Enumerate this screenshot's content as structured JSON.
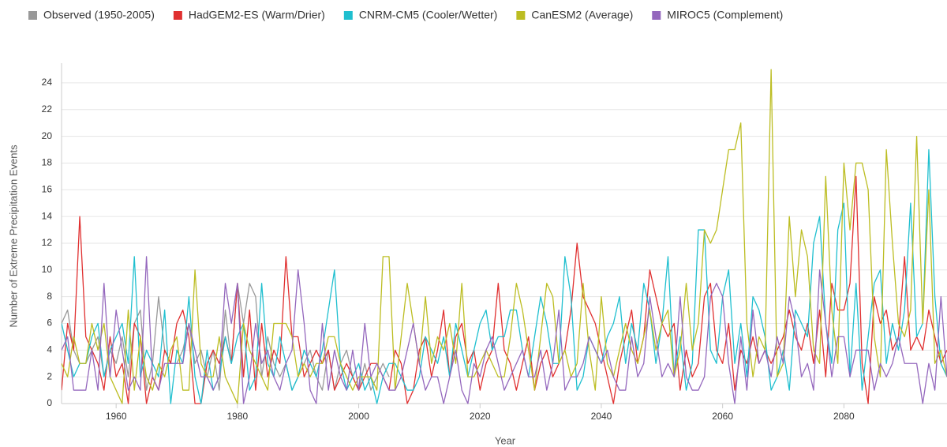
{
  "chart_data": {
    "type": "line",
    "x_label": "Year",
    "y_label": "Number of Extreme Precipitation Events",
    "legend": "top",
    "grid": true,
    "xlim": [
      1951,
      2097
    ],
    "xticks": [
      1960,
      1980,
      2000,
      2020,
      2040,
      2060,
      2080
    ],
    "ylim": [
      0,
      25
    ],
    "yticks": [
      0,
      2,
      4,
      6,
      8,
      10,
      12,
      14,
      16,
      18,
      20,
      22,
      24
    ],
    "x": [
      1951,
      1952,
      1953,
      1954,
      1955,
      1956,
      1957,
      1958,
      1959,
      1960,
      1961,
      1962,
      1963,
      1964,
      1965,
      1966,
      1967,
      1968,
      1969,
      1970,
      1971,
      1972,
      1973,
      1974,
      1975,
      1976,
      1977,
      1978,
      1979,
      1980,
      1981,
      1982,
      1983,
      1984,
      1985,
      1986,
      1987,
      1988,
      1989,
      1990,
      1991,
      1992,
      1993,
      1994,
      1995,
      1996,
      1997,
      1998,
      1999,
      2000,
      2001,
      2002,
      2003,
      2004,
      2005,
      2006,
      2007,
      2008,
      2009,
      2010,
      2011,
      2012,
      2013,
      2014,
      2015,
      2016,
      2017,
      2018,
      2019,
      2020,
      2021,
      2022,
      2023,
      2024,
      2025,
      2026,
      2027,
      2028,
      2029,
      2030,
      2031,
      2032,
      2033,
      2034,
      2035,
      2036,
      2037,
      2038,
      2039,
      2040,
      2041,
      2042,
      2043,
      2044,
      2045,
      2046,
      2047,
      2048,
      2049,
      2050,
      2051,
      2052,
      2053,
      2054,
      2055,
      2056,
      2057,
      2058,
      2059,
      2060,
      2061,
      2062,
      2063,
      2064,
      2065,
      2066,
      2067,
      2068,
      2069,
      2070,
      2071,
      2072,
      2073,
      2074,
      2075,
      2076,
      2077,
      2078,
      2079,
      2080,
      2081,
      2082,
      2083,
      2084,
      2085,
      2086,
      2087,
      2088,
      2089,
      2090,
      2091,
      2092,
      2093,
      2094,
      2095,
      2096,
      2097
    ],
    "series": [
      {
        "name": "Observed (1950-2005)",
        "color": "#999999",
        "values": [
          6,
          7,
          4,
          3,
          3,
          4,
          5,
          2,
          4,
          3,
          5,
          2,
          6,
          7,
          1,
          3,
          8,
          4,
          3,
          3,
          4,
          6,
          3,
          4,
          2,
          4,
          1,
          7,
          3,
          9,
          6,
          9,
          8,
          2,
          5,
          3,
          2,
          3,
          1,
          2,
          3,
          4,
          2,
          1,
          4,
          1,
          3,
          4,
          2,
          1,
          3,
          1,
          2,
          3,
          2,
          null,
          null,
          null,
          null,
          null,
          null,
          null,
          null,
          null,
          null,
          null,
          null,
          null,
          null,
          null,
          null,
          null,
          null,
          null,
          null,
          null,
          null,
          null,
          null,
          null,
          null,
          null,
          null,
          null,
          null,
          null,
          null,
          null,
          null,
          null,
          null,
          null,
          null,
          null,
          null,
          null,
          null,
          null,
          null,
          null,
          null,
          null,
          null,
          null,
          null,
          null,
          null,
          null,
          null,
          null,
          null,
          null,
          null,
          null,
          null,
          null,
          null,
          null,
          null,
          null,
          null,
          null,
          null,
          null,
          null,
          null,
          null,
          null,
          null,
          null,
          null,
          null,
          null,
          null,
          null,
          null,
          null,
          null,
          null,
          null,
          null,
          null,
          null,
          null,
          null,
          null,
          null
        ]
      },
      {
        "name": "HadGEM2-ES (Warm/Drier)",
        "color": "#e03030",
        "values": [
          1,
          6,
          4,
          14,
          5,
          4,
          3,
          1,
          5,
          2,
          3,
          0,
          6,
          5,
          0,
          2,
          1,
          4,
          3,
          6,
          7,
          5,
          0,
          0,
          3,
          4,
          3,
          5,
          3,
          9,
          2,
          7,
          1,
          6,
          2,
          4,
          3,
          11,
          5,
          5,
          2,
          3,
          4,
          3,
          4,
          1,
          2,
          3,
          2,
          1,
          2,
          3,
          3,
          2,
          1,
          4,
          3,
          0,
          1,
          4,
          5,
          2,
          4,
          7,
          2,
          5,
          6,
          3,
          4,
          1,
          3,
          4,
          9,
          4,
          3,
          1,
          3,
          5,
          1,
          3,
          4,
          2,
          3,
          4,
          7,
          12,
          8,
          7,
          6,
          4,
          2,
          0,
          3,
          5,
          7,
          3,
          5,
          10,
          8,
          6,
          5,
          6,
          1,
          4,
          2,
          3,
          8,
          9,
          4,
          3,
          6,
          1,
          4,
          3,
          5,
          3,
          4,
          3,
          4,
          5,
          7,
          5,
          4,
          6,
          3,
          7,
          2,
          9,
          7,
          7,
          9,
          17,
          3,
          0,
          8,
          6,
          7,
          4,
          5,
          11,
          4,
          5,
          4,
          7,
          5,
          3,
          4
        ]
      },
      {
        "name": "CNRM-CM5 (Cooler/Wetter)",
        "color": "#1fbfcf",
        "values": [
          6,
          4,
          2,
          3,
          3,
          5,
          6,
          2,
          4,
          5,
          6,
          3,
          11,
          2,
          4,
          3,
          2,
          7,
          0,
          4,
          3,
          8,
          2,
          0,
          4,
          1,
          2,
          5,
          3,
          5,
          6,
          1,
          2,
          9,
          3,
          2,
          5,
          3,
          1,
          2,
          4,
          3,
          2,
          4,
          7,
          10,
          3,
          1,
          2,
          3,
          1,
          2,
          0,
          2,
          3,
          3,
          2,
          1,
          1,
          2,
          5,
          4,
          3,
          5,
          2,
          6,
          4,
          2,
          4,
          6,
          7,
          4,
          5,
          5,
          7,
          7,
          4,
          2,
          5,
          8,
          6,
          3,
          3,
          11,
          8,
          1,
          2,
          5,
          4,
          3,
          5,
          6,
          8,
          3,
          6,
          4,
          9,
          7,
          3,
          6,
          11,
          2,
          5,
          1,
          3,
          13,
          13,
          4,
          3,
          8,
          10,
          3,
          6,
          2,
          8,
          7,
          5,
          1,
          2,
          4,
          1,
          7,
          6,
          5,
          12,
          14,
          6,
          3,
          13,
          15,
          2,
          9,
          1,
          5,
          9,
          10,
          3,
          6,
          4,
          7,
          15,
          5,
          6,
          19,
          8,
          3,
          2
        ]
      },
      {
        "name": "CanESM2 (Average)",
        "color": "#bcbd22",
        "values": [
          3,
          2,
          5,
          3,
          3,
          6,
          4,
          6,
          2,
          1,
          0,
          7,
          1,
          5,
          2,
          1,
          3,
          2,
          4,
          5,
          1,
          1,
          10,
          3,
          2,
          2,
          5,
          2,
          1,
          0,
          6,
          4,
          3,
          2,
          1,
          6,
          6,
          6,
          5,
          2,
          3,
          2,
          3,
          3,
          5,
          5,
          3,
          2,
          1,
          2,
          2,
          2,
          1,
          11,
          11,
          1,
          5,
          9,
          6,
          3,
          8,
          3,
          5,
          4,
          6,
          3,
          9,
          2,
          2,
          3,
          4,
          3,
          2,
          2,
          5,
          9,
          7,
          4,
          1,
          5,
          9,
          8,
          3,
          4,
          2,
          3,
          9,
          4,
          1,
          8,
          3,
          2,
          4,
          6,
          4,
          3,
          5,
          7,
          4,
          6,
          7,
          2,
          4,
          9,
          4,
          6,
          13,
          12,
          13,
          16,
          19,
          19,
          21,
          6,
          2,
          5,
          4,
          25,
          2,
          3,
          14,
          8,
          13,
          11,
          4,
          3,
          17,
          7,
          3,
          18,
          13,
          18,
          18,
          16,
          5,
          2,
          19,
          12,
          6,
          5,
          7,
          20,
          6,
          16,
          3,
          4,
          2
        ]
      },
      {
        "name": "MIROC5 (Complement)",
        "color": "#9467bd",
        "values": [
          4,
          5,
          1,
          1,
          1,
          4,
          1,
          9,
          2,
          7,
          4,
          1,
          2,
          1,
          11,
          2,
          1,
          3,
          3,
          3,
          3,
          6,
          4,
          2,
          2,
          1,
          2,
          9,
          6,
          9,
          0,
          2,
          6,
          3,
          4,
          2,
          1,
          3,
          4,
          10,
          6,
          1,
          0,
          6,
          1,
          4,
          2,
          1,
          4,
          1,
          6,
          2,
          3,
          2,
          1,
          1,
          2,
          4,
          6,
          3,
          1,
          2,
          2,
          0,
          2,
          4,
          1,
          0,
          3,
          2,
          4,
          5,
          3,
          1,
          2,
          3,
          4,
          2,
          2,
          4,
          1,
          3,
          7,
          1,
          2,
          2,
          3,
          5,
          4,
          3,
          4,
          2,
          1,
          1,
          5,
          2,
          3,
          8,
          5,
          2,
          3,
          2,
          8,
          2,
          1,
          1,
          2,
          8,
          9,
          8,
          3,
          0,
          5,
          1,
          7,
          3,
          4,
          2,
          5,
          3,
          8,
          6,
          2,
          3,
          1,
          10,
          6,
          2,
          5,
          5,
          2,
          4,
          4,
          4,
          1,
          3,
          2,
          3,
          5,
          3,
          3,
          3,
          0,
          3,
          1,
          8,
          2
        ]
      }
    ]
  }
}
